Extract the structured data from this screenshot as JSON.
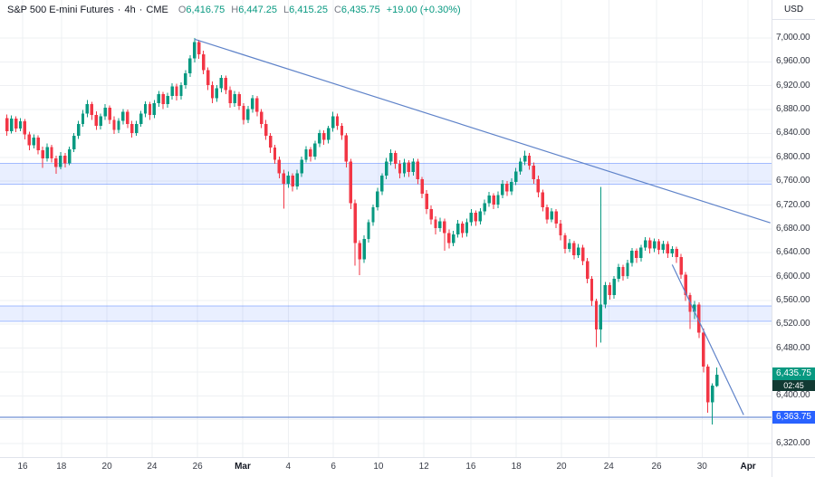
{
  "header": {
    "symbol": "S&P 500 E-mini Futures",
    "interval": "4h",
    "exchange": "CME",
    "separator": "·",
    "ohlc": {
      "o_label": "O",
      "o": "6,416.75",
      "h_label": "H",
      "h": "6,447.25",
      "l_label": "L",
      "l": "6,415.25",
      "c_label": "C",
      "c": "6,435.75",
      "change": "+19.00 (+0.30%)"
    },
    "currency": "USD"
  },
  "price_scale": {
    "last_price_label": "6,435.75",
    "countdown": "02:45",
    "level_label": "6,363.75"
  },
  "chart_data": {
    "type": "candlestick",
    "title": "S&P 500 E-mini Futures · 4h · CME",
    "ylabel": "price (USD)",
    "ylim": [
      6297.25,
      7063.75
    ],
    "y_ticks": [
      7000,
      6960,
      6920,
      6880,
      6840,
      6800,
      6760,
      6720,
      6680,
      6640,
      6600,
      6560,
      6520,
      6480,
      6440,
      6400,
      6360,
      6320
    ],
    "x_ticks": [
      {
        "label": "16",
        "bar": 3.5
      },
      {
        "label": "18",
        "bar": 12.2
      },
      {
        "label": "20",
        "bar": 22.4
      },
      {
        "label": "24",
        "bar": 32.5
      },
      {
        "label": "26",
        "bar": 42.7
      },
      {
        "label": "Mar",
        "bar": 52.8,
        "strong": true
      },
      {
        "label": "4",
        "bar": 63
      },
      {
        "label": "6",
        "bar": 73.1
      },
      {
        "label": "10",
        "bar": 83.2
      },
      {
        "label": "12",
        "bar": 93.4
      },
      {
        "label": "16",
        "bar": 103.9
      },
      {
        "label": "18",
        "bar": 114.1
      },
      {
        "label": "20",
        "bar": 124.2
      },
      {
        "label": "24",
        "bar": 134.8
      },
      {
        "label": "26",
        "bar": 145.5
      },
      {
        "label": "30",
        "bar": 155.7
      },
      {
        "label": "Apr",
        "bar": 166,
        "strong": true
      }
    ],
    "bands": [
      {
        "top": 6790,
        "bottom": 6755
      },
      {
        "top": 6551,
        "bottom": 6525
      }
    ],
    "level_line": 6363.75,
    "trendlines": [
      {
        "from": {
          "bar": 42,
          "price": 6998
        },
        "to": {
          "bar": 171,
          "price": 6690
        }
      },
      {
        "from": {
          "bar": 149,
          "price": 6620
        },
        "to": {
          "bar": 165,
          "price": 6368
        }
      }
    ],
    "candles": [
      [
        6866,
        6872,
        6836,
        6844
      ],
      [
        6844,
        6870,
        6840,
        6865
      ],
      [
        6865,
        6869,
        6842,
        6848
      ],
      [
        6848,
        6866,
        6844,
        6860
      ],
      [
        6860,
        6864,
        6830,
        6838
      ],
      [
        6838,
        6843,
        6812,
        6820
      ],
      [
        6820,
        6838,
        6815,
        6833
      ],
      [
        6833,
        6837,
        6805,
        6812
      ],
      [
        6812,
        6818,
        6782,
        6798
      ],
      [
        6798,
        6823,
        6793,
        6817
      ],
      [
        6817,
        6821,
        6791,
        6798
      ],
      [
        6798,
        6803,
        6772,
        6784
      ],
      [
        6784,
        6809,
        6780,
        6803
      ],
      [
        6803,
        6807,
        6783,
        6790
      ],
      [
        6790,
        6818,
        6787,
        6813
      ],
      [
        6813,
        6841,
        6809,
        6836
      ],
      [
        6836,
        6861,
        6831,
        6856
      ],
      [
        6856,
        6879,
        6851,
        6873
      ],
      [
        6873,
        6896,
        6867,
        6889
      ],
      [
        6889,
        6893,
        6863,
        6871
      ],
      [
        6871,
        6877,
        6846,
        6853
      ],
      [
        6853,
        6873,
        6847,
        6869
      ],
      [
        6869,
        6889,
        6863,
        6883
      ],
      [
        6883,
        6887,
        6856,
        6863
      ],
      [
        6863,
        6869,
        6839,
        6846
      ],
      [
        6846,
        6866,
        6841,
        6861
      ],
      [
        6861,
        6881,
        6855,
        6876
      ],
      [
        6876,
        6880,
        6849,
        6856
      ],
      [
        6856,
        6861,
        6833,
        6841
      ],
      [
        6841,
        6861,
        6836,
        6856
      ],
      [
        6856,
        6878,
        6851,
        6873
      ],
      [
        6873,
        6894,
        6867,
        6889
      ],
      [
        6889,
        6893,
        6863,
        6871
      ],
      [
        6871,
        6896,
        6866,
        6891
      ],
      [
        6891,
        6911,
        6885,
        6906
      ],
      [
        6906,
        6910,
        6881,
        6889
      ],
      [
        6889,
        6908,
        6883,
        6903
      ],
      [
        6903,
        6924,
        6897,
        6919
      ],
      [
        6919,
        6923,
        6895,
        6903
      ],
      [
        6903,
        6926,
        6897,
        6921
      ],
      [
        6921,
        6946,
        6915,
        6941
      ],
      [
        6941,
        6971,
        6935,
        6966
      ],
      [
        6966,
        7000,
        6959,
        6993
      ],
      [
        6993,
        6997,
        6965,
        6973
      ],
      [
        6973,
        6979,
        6939,
        6946
      ],
      [
        6946,
        6951,
        6913,
        6921
      ],
      [
        6921,
        6927,
        6891,
        6899
      ],
      [
        6899,
        6921,
        6893,
        6916
      ],
      [
        6916,
        6938,
        6909,
        6933
      ],
      [
        6933,
        6937,
        6906,
        6913
      ],
      [
        6913,
        6919,
        6883,
        6891
      ],
      [
        6891,
        6911,
        6885,
        6906
      ],
      [
        6906,
        6910,
        6879,
        6886
      ],
      [
        6886,
        6891,
        6855,
        6863
      ],
      [
        6863,
        6886,
        6857,
        6881
      ],
      [
        6881,
        6904,
        6875,
        6899
      ],
      [
        6899,
        6903,
        6869,
        6876
      ],
      [
        6876,
        6881,
        6849,
        6856
      ],
      [
        6856,
        6863,
        6829,
        6836
      ],
      [
        6836,
        6841,
        6807,
        6816
      ],
      [
        6816,
        6821,
        6789,
        6796
      ],
      [
        6796,
        6801,
        6765,
        6773
      ],
      [
        6773,
        6779,
        6714,
        6756
      ],
      [
        6756,
        6776,
        6749,
        6769
      ],
      [
        6769,
        6773,
        6743,
        6751
      ],
      [
        6751,
        6779,
        6746,
        6773
      ],
      [
        6773,
        6801,
        6767,
        6796
      ],
      [
        6796,
        6819,
        6791,
        6813
      ],
      [
        6813,
        6817,
        6793,
        6801
      ],
      [
        6801,
        6828,
        6796,
        6823
      ],
      [
        6823,
        6846,
        6817,
        6841
      ],
      [
        6841,
        6845,
        6821,
        6829
      ],
      [
        6829,
        6853,
        6823,
        6849
      ],
      [
        6849,
        6876,
        6843,
        6869
      ],
      [
        6869,
        6873,
        6846,
        6853
      ],
      [
        6853,
        6857,
        6829,
        6837
      ],
      [
        6837,
        6841,
        6783,
        6793
      ],
      [
        6793,
        6797,
        6713,
        6723
      ],
      [
        6723,
        6729,
        6618,
        6656
      ],
      [
        6656,
        6661,
        6602,
        6629
      ],
      [
        6629,
        6669,
        6623,
        6663
      ],
      [
        6663,
        6696,
        6657,
        6691
      ],
      [
        6691,
        6721,
        6685,
        6716
      ],
      [
        6716,
        6749,
        6711,
        6743
      ],
      [
        6743,
        6773,
        6737,
        6769
      ],
      [
        6769,
        6799,
        6763,
        6793
      ],
      [
        6793,
        6813,
        6787,
        6807
      ],
      [
        6807,
        6811,
        6781,
        6789
      ],
      [
        6789,
        6795,
        6765,
        6773
      ],
      [
        6773,
        6797,
        6767,
        6791
      ],
      [
        6791,
        6795,
        6767,
        6775
      ],
      [
        6775,
        6798,
        6769,
        6793
      ],
      [
        6793,
        6797,
        6755,
        6763
      ],
      [
        6763,
        6767,
        6731,
        6739
      ],
      [
        6739,
        6745,
        6705,
        6713
      ],
      [
        6713,
        6719,
        6687,
        6696
      ],
      [
        6696,
        6701,
        6671,
        6681
      ],
      [
        6681,
        6699,
        6675,
        6693
      ],
      [
        6693,
        6697,
        6643,
        6673
      ],
      [
        6673,
        6679,
        6647,
        6656
      ],
      [
        6656,
        6677,
        6651,
        6671
      ],
      [
        6671,
        6695,
        6665,
        6689
      ],
      [
        6689,
        6693,
        6665,
        6673
      ],
      [
        6673,
        6697,
        6667,
        6691
      ],
      [
        6691,
        6713,
        6685,
        6707
      ],
      [
        6707,
        6711,
        6685,
        6693
      ],
      [
        6693,
        6715,
        6687,
        6709
      ],
      [
        6709,
        6729,
        6703,
        6723
      ],
      [
        6723,
        6742,
        6717,
        6736
      ],
      [
        6736,
        6740,
        6713,
        6721
      ],
      [
        6721,
        6743,
        6715,
        6737
      ],
      [
        6737,
        6762,
        6731,
        6756
      ],
      [
        6756,
        6760,
        6735,
        6743
      ],
      [
        6743,
        6765,
        6737,
        6759
      ],
      [
        6759,
        6782,
        6753,
        6776
      ],
      [
        6776,
        6799,
        6771,
        6793
      ],
      [
        6793,
        6811,
        6787,
        6803
      ],
      [
        6803,
        6807,
        6779,
        6786
      ],
      [
        6786,
        6791,
        6756,
        6763
      ],
      [
        6763,
        6769,
        6733,
        6741
      ],
      [
        6741,
        6746,
        6709,
        6716
      ],
      [
        6716,
        6721,
        6689,
        6696
      ],
      [
        6696,
        6715,
        6691,
        6709
      ],
      [
        6709,
        6713,
        6681,
        6689
      ],
      [
        6689,
        6695,
        6661,
        6669
      ],
      [
        6669,
        6673,
        6639,
        6646
      ],
      [
        6646,
        6663,
        6641,
        6656
      ],
      [
        6656,
        6660,
        6629,
        6636
      ],
      [
        6636,
        6655,
        6631,
        6649
      ],
      [
        6649,
        6653,
        6619,
        6626
      ],
      [
        6626,
        6631,
        6589,
        6596
      ],
      [
        6596,
        6601,
        6551,
        6559
      ],
      [
        6559,
        6563,
        6482,
        6511
      ],
      [
        6511,
        6750,
        6489,
        6553
      ],
      [
        6553,
        6591,
        6547,
        6586
      ],
      [
        6586,
        6590,
        6561,
        6569
      ],
      [
        6569,
        6601,
        6563,
        6596
      ],
      [
        6596,
        6621,
        6591,
        6616
      ],
      [
        6616,
        6620,
        6593,
        6601
      ],
      [
        6601,
        6628,
        6596,
        6623
      ],
      [
        6623,
        6648,
        6617,
        6643
      ],
      [
        6643,
        6647,
        6623,
        6631
      ],
      [
        6631,
        6653,
        6625,
        6649
      ],
      [
        6649,
        6666,
        6643,
        6661
      ],
      [
        6661,
        6665,
        6639,
        6647
      ],
      [
        6647,
        6664,
        6641,
        6659
      ],
      [
        6659,
        6663,
        6637,
        6645
      ],
      [
        6645,
        6660,
        6639,
        6655
      ],
      [
        6655,
        6659,
        6631,
        6639
      ],
      [
        6639,
        6651,
        6633,
        6646
      ],
      [
        6646,
        6650,
        6623,
        6633
      ],
      [
        6633,
        6638,
        6596,
        6603
      ],
      [
        6603,
        6608,
        6559,
        6569
      ],
      [
        6569,
        6573,
        6512,
        6541
      ],
      [
        6541,
        6559,
        6529,
        6553
      ],
      [
        6553,
        6557,
        6497,
        6506
      ],
      [
        6506,
        6513,
        6439,
        6449
      ],
      [
        6449,
        6453,
        6372,
        6389
      ],
      [
        6389,
        6421,
        6352,
        6417
      ],
      [
        6416.75,
        6447.25,
        6415.25,
        6435.75
      ]
    ],
    "colors": {
      "up": "#089981",
      "down": "#F23645",
      "trendline": "#5f83c9",
      "band_fill": "rgba(41,98,255,0.10)",
      "band_edge": "rgba(41,98,255,0.40)",
      "level": "#4d74c9",
      "grid": "#eef0f3",
      "axis_text": "#363a45",
      "badge_last_bg": "#089981",
      "badge_countdown_bg": "#123a33",
      "badge_level_bg": "#2962FF"
    }
  }
}
